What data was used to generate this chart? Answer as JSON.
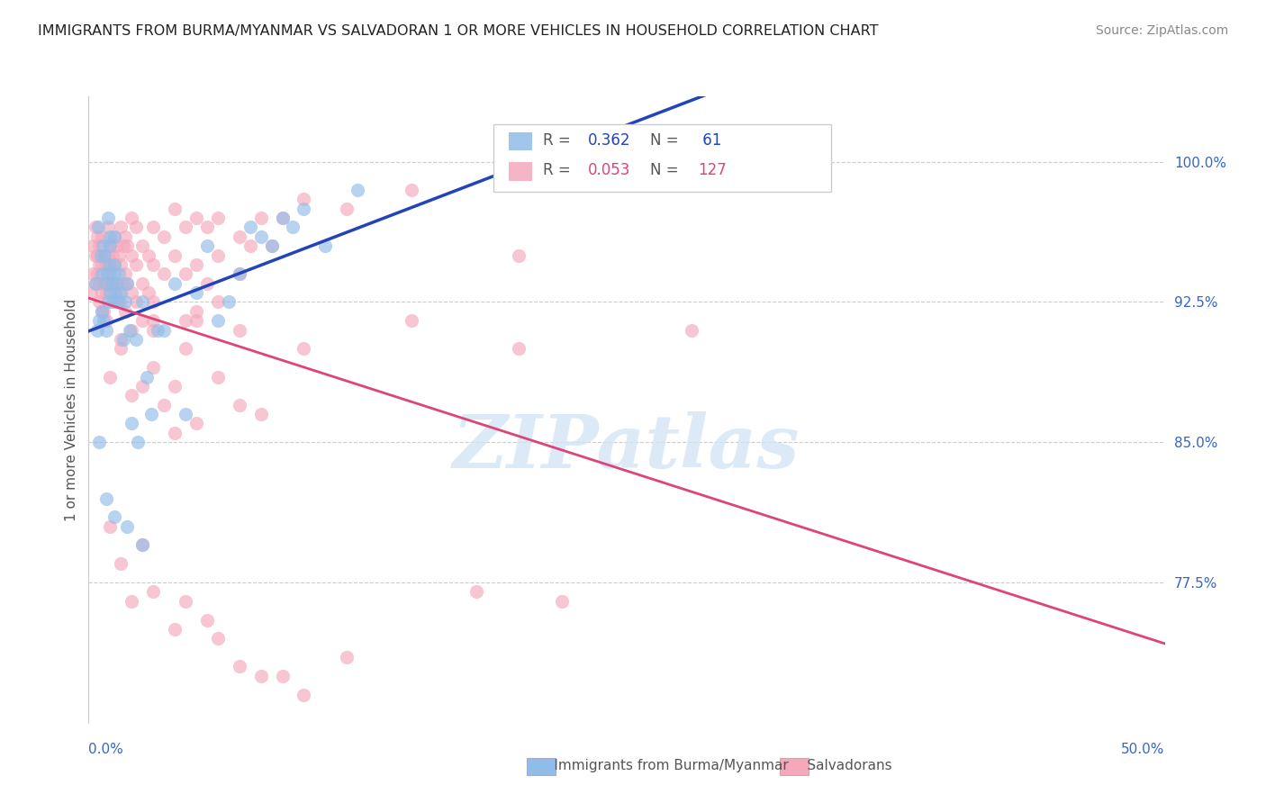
{
  "title": "IMMIGRANTS FROM BURMA/MYANMAR VS SALVADORAN 1 OR MORE VEHICLES IN HOUSEHOLD CORRELATION CHART",
  "source": "Source: ZipAtlas.com",
  "ylabel": "1 or more Vehicles in Household",
  "ytick_labels": [
    "77.5%",
    "85.0%",
    "92.5%",
    "100.0%"
  ],
  "ytick_values": [
    77.5,
    85.0,
    92.5,
    100.0
  ],
  "xmin": 0.0,
  "xmax": 50.0,
  "ymin": 70.0,
  "ymax": 103.5,
  "blue_color": "#92bce8",
  "pink_color": "#f5a8bc",
  "blue_line_color": "#2244bb",
  "pink_line_color": "#dd4477",
  "grid_color": "#cccccc",
  "scatter_alpha": 0.65,
  "scatter_size": 120,
  "blue_r": "0.362",
  "blue_n": "61",
  "pink_r": "0.053",
  "pink_n": "127",
  "legend_r_color": "#2244bb",
  "legend_n_color": "#2244bb",
  "legend_r2_color": "#dd4477",
  "legend_n2_color": "#dd4477",
  "watermark_text": "ZIPatlas",
  "blue_x": [
    0.3,
    0.4,
    0.45,
    0.5,
    0.55,
    0.6,
    0.6,
    0.65,
    0.7,
    0.75,
    0.8,
    0.8,
    0.85,
    0.9,
    0.9,
    0.95,
    1.0,
    1.0,
    1.0,
    1.05,
    1.1,
    1.15,
    1.2,
    1.2,
    1.25,
    1.3,
    1.35,
    1.4,
    1.5,
    1.6,
    1.7,
    1.8,
    1.9,
    2.0,
    2.2,
    2.3,
    2.5,
    2.7,
    2.9,
    3.2,
    3.5,
    4.0,
    4.5,
    5.0,
    5.5,
    6.0,
    6.5,
    7.0,
    7.5,
    8.0,
    8.5,
    9.0,
    9.5,
    10.0,
    11.0,
    12.5,
    0.5,
    0.8,
    1.2,
    1.8,
    2.5
  ],
  "blue_y": [
    93.5,
    91.0,
    96.5,
    91.5,
    95.0,
    94.0,
    92.0,
    95.5,
    91.5,
    95.0,
    93.5,
    91.0,
    94.0,
    92.5,
    97.0,
    94.5,
    95.5,
    93.0,
    96.0,
    93.5,
    92.5,
    94.0,
    94.5,
    96.0,
    93.0,
    93.5,
    92.5,
    94.0,
    93.0,
    90.5,
    92.5,
    93.5,
    91.0,
    86.0,
    90.5,
    85.0,
    92.5,
    88.5,
    86.5,
    91.0,
    91.0,
    93.5,
    86.5,
    93.0,
    95.5,
    91.5,
    92.5,
    94.0,
    96.5,
    96.0,
    95.5,
    97.0,
    96.5,
    97.5,
    95.5,
    98.5,
    85.0,
    82.0,
    81.0,
    80.5,
    79.5
  ],
  "pink_x": [
    0.1,
    0.2,
    0.2,
    0.3,
    0.3,
    0.3,
    0.4,
    0.4,
    0.4,
    0.5,
    0.5,
    0.5,
    0.5,
    0.6,
    0.6,
    0.6,
    0.6,
    0.7,
    0.7,
    0.7,
    0.8,
    0.8,
    0.8,
    0.9,
    0.9,
    0.9,
    1.0,
    1.0,
    1.1,
    1.1,
    1.2,
    1.2,
    1.2,
    1.3,
    1.3,
    1.4,
    1.4,
    1.5,
    1.5,
    1.5,
    1.6,
    1.6,
    1.7,
    1.7,
    1.7,
    1.8,
    1.8,
    2.0,
    2.0,
    2.0,
    2.0,
    2.2,
    2.2,
    2.2,
    2.5,
    2.5,
    2.5,
    2.8,
    2.8,
    3.0,
    3.0,
    3.0,
    3.5,
    3.5,
    4.0,
    4.0,
    4.0,
    4.5,
    4.5,
    4.5,
    5.0,
    5.0,
    5.0,
    5.5,
    5.5,
    6.0,
    6.0,
    6.0,
    7.0,
    7.0,
    7.5,
    8.0,
    8.5,
    9.0,
    10.0,
    12.0,
    15.0,
    20.0,
    1.0,
    1.5,
    2.0,
    2.5,
    3.0,
    3.5,
    4.0,
    5.0,
    6.0,
    7.0,
    8.0,
    3.0,
    4.5,
    1.5,
    2.0,
    3.0,
    4.5,
    5.5,
    7.0,
    9.0,
    10.0,
    1.0,
    2.5,
    4.0,
    6.0,
    8.0,
    12.0,
    18.0,
    22.0,
    1.5,
    3.0,
    5.0,
    7.0,
    10.0,
    15.0,
    20.0,
    28.0
  ],
  "pink_y": [
    93.0,
    95.5,
    94.0,
    96.5,
    95.0,
    93.5,
    96.0,
    95.0,
    94.0,
    95.5,
    94.5,
    93.5,
    92.5,
    96.0,
    94.5,
    93.0,
    92.0,
    95.0,
    93.5,
    92.0,
    94.5,
    93.0,
    91.5,
    96.5,
    95.0,
    93.5,
    95.5,
    94.0,
    95.0,
    93.5,
    96.0,
    94.5,
    92.5,
    95.5,
    93.5,
    95.0,
    93.0,
    96.5,
    94.5,
    92.5,
    95.5,
    93.5,
    96.0,
    94.0,
    92.0,
    95.5,
    93.5,
    97.0,
    95.0,
    93.0,
    91.0,
    96.5,
    94.5,
    92.5,
    95.5,
    93.5,
    91.5,
    95.0,
    93.0,
    96.5,
    94.5,
    92.5,
    96.0,
    94.0,
    97.5,
    95.0,
    85.5,
    96.5,
    94.0,
    91.5,
    97.0,
    94.5,
    92.0,
    96.5,
    93.5,
    97.0,
    95.0,
    92.5,
    96.0,
    94.0,
    95.5,
    97.0,
    95.5,
    97.0,
    98.0,
    97.5,
    98.5,
    95.0,
    88.5,
    90.0,
    87.5,
    88.0,
    89.0,
    87.0,
    88.0,
    86.0,
    88.5,
    87.0,
    86.5,
    91.5,
    90.0,
    78.5,
    76.5,
    77.0,
    76.5,
    75.5,
    73.0,
    72.5,
    71.5,
    80.5,
    79.5,
    75.0,
    74.5,
    72.5,
    73.5,
    77.0,
    76.5,
    90.5,
    91.0,
    91.5,
    91.0,
    90.0,
    91.5,
    90.0,
    91.0
  ]
}
